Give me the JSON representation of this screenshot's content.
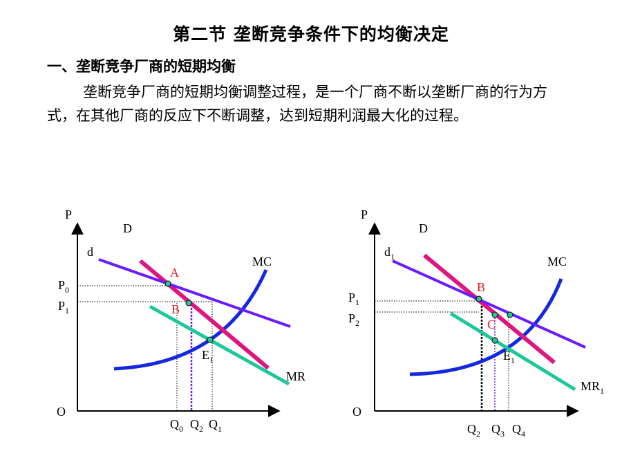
{
  "page": {
    "title": "第二节  垄断竞争条件下的均衡决定",
    "subheading": "一、垄断竞争厂商的短期均衡",
    "paragraph": "垄断竞争厂商的短期均衡调整过程，是一个厂商不断以垄断厂商的行为方式，在其他厂商的反应下不断调整，达到短期利润最大化的过程。"
  },
  "colors": {
    "d_curve": "#6a1bff",
    "D_curve": "#de1680",
    "MR_curve": "#1cc79a",
    "MC_curve": "#1428e0",
    "point_fill": "#2ec490",
    "point_label": "#e31b23",
    "guide": "#000000",
    "Q2_guide_left": "#6a1bff",
    "Q2_guide_right": "#000000"
  },
  "chart_data": [
    {
      "type": "line",
      "panel": "left",
      "y_axis_label": "P",
      "origin_label": "O",
      "curves": [
        {
          "name": "d",
          "label": "d"
        },
        {
          "name": "D",
          "label": "D"
        },
        {
          "name": "MR",
          "label": "MR"
        },
        {
          "name": "MC",
          "label": "MC"
        }
      ],
      "price_ticks": [
        {
          "main": "P",
          "sub": "0"
        },
        {
          "main": "P",
          "sub": "1"
        }
      ],
      "quantity_ticks": [
        {
          "main": "Q",
          "sub": "0"
        },
        {
          "main": "Q",
          "sub": "2"
        },
        {
          "main": "Q",
          "sub": "1"
        }
      ],
      "points": [
        {
          "main": "A",
          "sub": ""
        },
        {
          "main": "B",
          "sub": ""
        },
        {
          "main": "E",
          "sub": "1"
        }
      ]
    },
    {
      "type": "line",
      "panel": "right",
      "y_axis_label": "P",
      "origin_label": "O",
      "curves": [
        {
          "name": "d1",
          "label": "d",
          "label_sub": "1"
        },
        {
          "name": "D",
          "label": "D"
        },
        {
          "name": "MR1",
          "label": "MR",
          "label_sub": "1"
        },
        {
          "name": "MC",
          "label": "MC"
        }
      ],
      "price_ticks": [
        {
          "main": "P",
          "sub": "1"
        },
        {
          "main": "P",
          "sub": "2"
        }
      ],
      "quantity_ticks": [
        {
          "main": "Q",
          "sub": "2"
        },
        {
          "main": "Q",
          "sub": "3"
        },
        {
          "main": "Q",
          "sub": "4"
        }
      ],
      "points": [
        {
          "main": "B",
          "sub": ""
        },
        {
          "main": "C",
          "sub": ""
        },
        {
          "main": "E",
          "sub": "1"
        }
      ]
    }
  ]
}
